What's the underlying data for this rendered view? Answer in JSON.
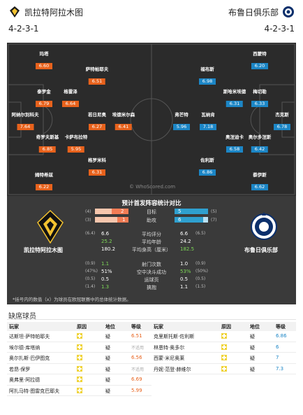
{
  "header": {
    "home_team": "凯拉特阿拉木图",
    "away_team": "布鲁日俱乐部",
    "home_formation": "4-2-3-1",
    "away_formation": "4-2-3-1"
  },
  "pitch": {
    "watermark": "© WhoScored.com",
    "home_players": [
      {
        "name": "玛塔",
        "rating": "6.60"
      },
      {
        "name": "萨特帕耶夫",
        "rating": "6.51"
      },
      {
        "name": "泰罗金",
        "rating": "6.79"
      },
      {
        "name": "格雷泽",
        "rating": "6.64"
      },
      {
        "name": "阿纳尔別科夫",
        "rating": "7.64"
      },
      {
        "name": "若日尼奥",
        "rating": "6.27"
      },
      {
        "name": "埃德米尔森",
        "rating": "6.41"
      },
      {
        "name": "卡萨布拉特",
        "rating": "5.95"
      },
      {
        "name": "奇罗夫斯基",
        "rating": "6.85"
      },
      {
        "name": "格罗米科",
        "rating": "6.31"
      },
      {
        "name": "姆特希兹",
        "rating": "6.22"
      }
    ],
    "away_players": [
      {
        "name": "西蒙特",
        "rating": "6.20"
      },
      {
        "name": "福布斯",
        "rating": "6.98"
      },
      {
        "name": "斯哈米埃德",
        "rating": "6.31"
      },
      {
        "name": "梅切勒",
        "rating": "6.33"
      },
      {
        "name": "杰克斯",
        "rating": "6.78"
      },
      {
        "name": "弗芒特",
        "rating": "5.96"
      },
      {
        "name": "瓦纳肯",
        "rating": "7.18"
      },
      {
        "name": "奥涅迪卡",
        "rating": "6.58"
      },
      {
        "name": "奥尔多涅斯",
        "rating": "6.42"
      },
      {
        "name": "佐利斯",
        "rating": "6.86"
      },
      {
        "name": "蔡伊斯",
        "rating": "6.62"
      }
    ]
  },
  "stats": {
    "title": "预计首发阵容统计对比",
    "home_name": "凯拉特阿拉木图",
    "away_name": "布鲁日俱乐部",
    "goals_label": "目标",
    "assists_label": "助攻",
    "goals_home": "2",
    "goals_home_prev": "(4)",
    "goals_away": "5",
    "goals_away_prev": "(5)",
    "assists_home": "1",
    "assists_home_prev": "(3)",
    "assists_away": "6",
    "assists_away_prev": "(7)",
    "goals_home_share": 0.5,
    "goals_away_share": 1.0,
    "assists_home_share": 0.33,
    "assists_away_share": 0.86,
    "rows": [
      {
        "label": "平均评分",
        "home_prev": "(6.4)",
        "home": "6.6",
        "away": "6.6",
        "away_prev": "(6.5)"
      },
      {
        "label": "平均年龄",
        "home_prev": "",
        "home": "25.2",
        "away": "24.2",
        "away_prev": ""
      },
      {
        "label": "平均身高（厘米）",
        "home_prev": "",
        "home": "180.2",
        "away": "182.5",
        "away_prev": ""
      },
      {
        "label": "射门次数",
        "home_prev": "(0.9)",
        "home": "1.1",
        "away": "1.0",
        "away_prev": "(0.9)"
      },
      {
        "label": "空中决斗成功",
        "home_prev": "(47%)",
        "home": "51%",
        "away": "53%",
        "away_prev": "(50%)"
      },
      {
        "label": "运球页",
        "home_prev": "(0.5)",
        "home": "0.5",
        "away": "0.5",
        "away_prev": "(0.5)"
      },
      {
        "label": "擒抱",
        "home_prev": "(1.4)",
        "home": "1.3",
        "away": "1.1",
        "away_prev": "(1.5)"
      }
    ],
    "footnote": "*括号内的数值（x）为球员在欧冠联赛中的总体统计数据。"
  },
  "missing": {
    "title": "缺席球员",
    "headers": {
      "player": "玩家",
      "reason": "原因",
      "position": "地位",
      "rating": "等级"
    },
    "home": [
      {
        "name": "达斯坦·萨特帕耶夫",
        "position": "疑",
        "rating": "6.51",
        "na": false
      },
      {
        "name": "埃尔德·库塔纳",
        "position": "疑",
        "rating": "不适用",
        "na": true
      },
      {
        "name": "奥尔扎斯·巴伊图克",
        "position": "疑",
        "rating": "6.56",
        "na": false
      },
      {
        "name": "若昂·保罗",
        "position": "疑",
        "rating": "不适用",
        "na": true
      },
      {
        "name": "奥弗里·阿拉德",
        "position": "疑",
        "rating": "6.69",
        "na": false
      },
      {
        "name": "阿扎马特·图雷克巴耶夫",
        "position": "疑",
        "rating": "5.99",
        "na": false
      }
    ],
    "away": [
      {
        "name": "克里斯托斯·佐利斯",
        "position": "疑",
        "rating": "6.86"
      },
      {
        "name": "林恩特·奥多尔",
        "position": "疑",
        "rating": "6"
      },
      {
        "name": "西蒙·米尼奥莱",
        "position": "疑",
        "rating": "7"
      },
      {
        "name": "丹妮·范登·赫维尔",
        "position": "疑",
        "rating": "7.3"
      }
    ]
  },
  "colors": {
    "home": "#e8621c",
    "away": "#1c86c6",
    "positive": "#7ed957"
  }
}
